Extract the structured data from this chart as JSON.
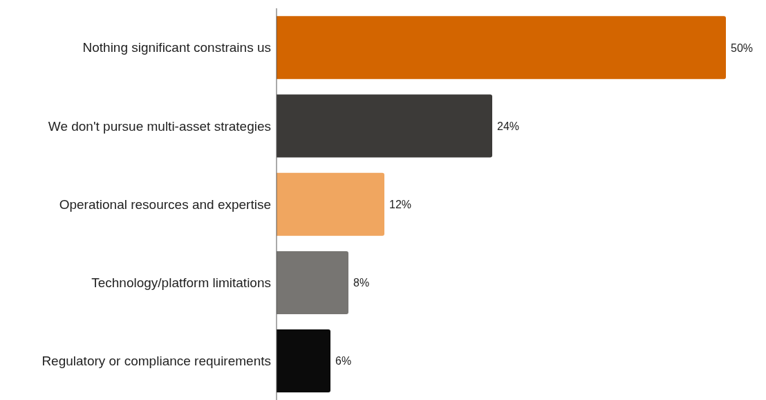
{
  "chart_data": {
    "type": "bar",
    "orientation": "horizontal",
    "categories": [
      "Nothing significant constrains us",
      "We don't pursue multi-asset strategies",
      "Operational resources and expertise",
      "Technology/platform limitations",
      "Regulatory or compliance requirements"
    ],
    "values": [
      50,
      24,
      12,
      8,
      6
    ],
    "colors": [
      "#d36500",
      "#3c3a38",
      "#f0a660",
      "#777572",
      "#0b0b0b"
    ],
    "value_labels": [
      "50%",
      "24%",
      "12%",
      "8%",
      "6%"
    ],
    "grid": false,
    "legend": false
  }
}
